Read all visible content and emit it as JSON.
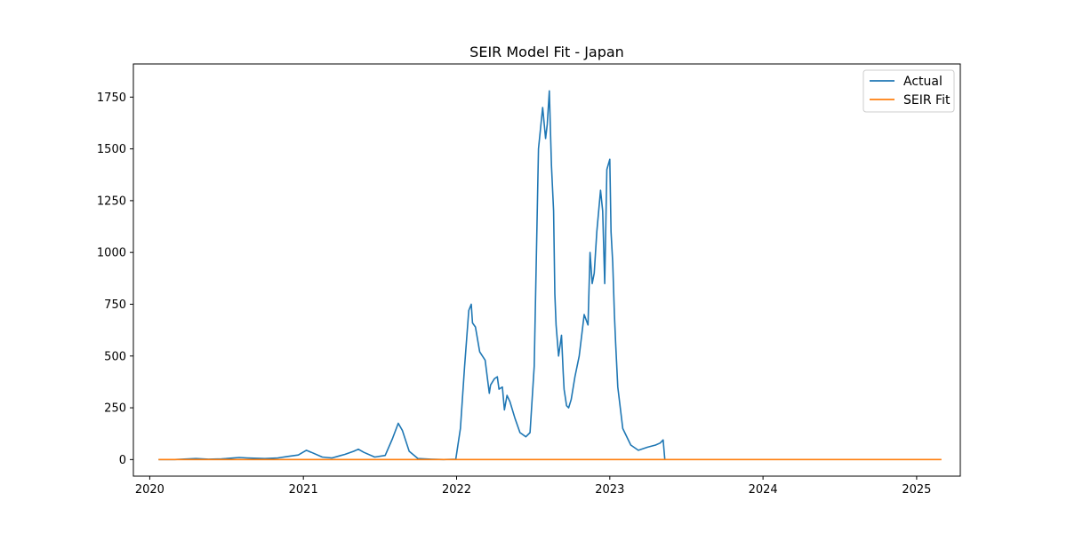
{
  "chart_data": {
    "type": "line",
    "title": "SEIR Model Fit - Japan",
    "xlabel": "",
    "ylabel": "",
    "xlim": [
      "2019-11-23",
      "2025-04-15"
    ],
    "ylim": [
      -80,
      1910
    ],
    "xticks": [
      {
        "label": "2020",
        "date": "2020-01-01"
      },
      {
        "label": "2021",
        "date": "2021-01-01"
      },
      {
        "label": "2022",
        "date": "2022-01-01"
      },
      {
        "label": "2023",
        "date": "2023-01-01"
      },
      {
        "label": "2024",
        "date": "2024-01-01"
      },
      {
        "label": "2025",
        "date": "2025-01-01"
      }
    ],
    "yticks": [
      0,
      250,
      500,
      750,
      1000,
      1250,
      1500,
      1750
    ],
    "grid": false,
    "legend_position": "top-right",
    "colors": {
      "actual": "#1f77b4",
      "seir_fit": "#ff7f0e"
    },
    "series": [
      {
        "name": "Actual",
        "x": [
          "2020-01-22",
          "2020-03-01",
          "2020-04-20",
          "2020-05-20",
          "2020-06-20",
          "2020-08-01",
          "2020-08-20",
          "2020-10-01",
          "2020-11-01",
          "2020-11-25",
          "2020-12-20",
          "2021-01-08",
          "2021-01-20",
          "2021-02-15",
          "2021-03-10",
          "2021-04-10",
          "2021-05-01",
          "2021-05-12",
          "2021-05-25",
          "2021-06-20",
          "2021-07-15",
          "2021-08-01",
          "2021-08-15",
          "2021-08-25",
          "2021-09-10",
          "2021-10-01",
          "2021-11-01",
          "2021-12-01",
          "2021-12-30",
          "2022-01-10",
          "2022-01-20",
          "2022-01-30",
          "2022-02-05",
          "2022-02-08",
          "2022-02-15",
          "2022-02-25",
          "2022-03-10",
          "2022-03-20",
          "2022-03-23",
          "2022-04-01",
          "2022-04-08",
          "2022-04-12",
          "2022-04-20",
          "2022-04-25",
          "2022-05-01",
          "2022-05-08",
          "2022-05-20",
          "2022-06-01",
          "2022-06-15",
          "2022-06-25",
          "2022-07-05",
          "2022-07-15",
          "2022-07-25",
          "2022-08-01",
          "2022-08-05",
          "2022-08-10",
          "2022-08-15",
          "2022-08-20",
          "2022-08-23",
          "2022-08-26",
          "2022-09-01",
          "2022-09-08",
          "2022-09-12",
          "2022-09-14",
          "2022-09-20",
          "2022-09-25",
          "2022-10-01",
          "2022-10-10",
          "2022-10-20",
          "2022-11-01",
          "2022-11-10",
          "2022-11-15",
          "2022-11-20",
          "2022-11-25",
          "2022-12-01",
          "2022-12-10",
          "2022-12-15",
          "2022-12-20",
          "2022-12-25",
          "2023-01-01",
          "2023-01-04",
          "2023-01-08",
          "2023-01-12",
          "2023-01-15",
          "2023-01-20",
          "2023-02-01",
          "2023-02-20",
          "2023-03-10",
          "2023-04-01",
          "2023-04-20",
          "2023-05-01",
          "2023-05-08",
          "2023-05-12"
        ],
        "values": [
          0,
          0,
          5,
          2,
          3,
          10,
          8,
          5,
          8,
          15,
          22,
          45,
          35,
          12,
          8,
          25,
          40,
          50,
          35,
          12,
          20,
          100,
          175,
          140,
          40,
          5,
          2,
          0,
          2,
          150,
          450,
          720,
          750,
          660,
          640,
          520,
          480,
          320,
          360,
          390,
          400,
          340,
          350,
          240,
          310,
          280,
          200,
          130,
          110,
          130,
          450,
          1500,
          1700,
          1550,
          1620,
          1780,
          1420,
          1200,
          800,
          650,
          500,
          600,
          420,
          340,
          260,
          250,
          290,
          400,
          500,
          700,
          650,
          1000,
          850,
          900,
          1100,
          1300,
          1200,
          850,
          1400,
          1450,
          1100,
          950,
          700,
          560,
          350,
          150,
          70,
          45,
          60,
          70,
          80,
          95,
          0
        ]
      },
      {
        "name": "SEIR Fit",
        "x": [
          "2020-01-22",
          "2025-03-01"
        ],
        "values": [
          0,
          0
        ]
      }
    ]
  }
}
